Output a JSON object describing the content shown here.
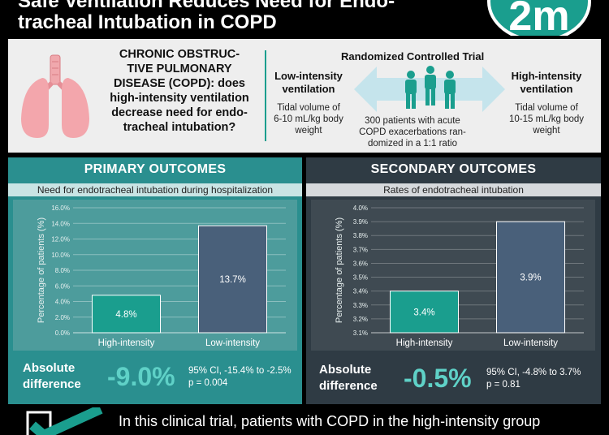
{
  "header": {
    "title_line1": "Safe Ventilation Reduces Need for Endo-",
    "title_line2": "tracheal Intubation in COPD",
    "logo": "2m"
  },
  "intro": {
    "question": "CHRONIC OBSTRUCTIVE PULMONARY DISEASE (COPD): does high-intensity ventilation decrease need for endotracheal intubation?",
    "question_lines": [
      "CHRONIC OBSTRUC-",
      "TIVE PULMONARY",
      "DISEASE (COPD): does",
      "high-intensity ventilation",
      "decrease need for endo-",
      "tracheal intubation?"
    ],
    "rct_title": "Randomized Controlled Trial",
    "low_title_lines": [
      "Low-intensity",
      "ventilation"
    ],
    "low_desc_lines": [
      "Tidal volume of",
      "6-10 mL/kg body",
      "weight"
    ],
    "high_title_lines": [
      "High-intensity",
      "ventilation"
    ],
    "high_desc_lines": [
      "Tidal volume of",
      "10-15 mL/kg body",
      "weight"
    ],
    "center_desc_lines": [
      "300 patients with acute",
      "COPD exacerbations ran-",
      "domized in a 1:1 ratio"
    ]
  },
  "primary": {
    "title": "PRIMARY OUTCOMES",
    "subtitle": "Need for endotracheal intubation during hospitalization",
    "abs_label_lines": [
      "Absolute",
      "difference"
    ],
    "abs_value": "-9.0%",
    "ci": "95% CI, -15.4% to -2.5%",
    "p": "p = 0.004"
  },
  "secondary": {
    "title": "SECONDARY OUTCOMES",
    "subtitle": "Rates of endotracheal intubation",
    "abs_label_lines": [
      "Absolute",
      "difference"
    ],
    "abs_value": "-0.5%",
    "ci": "95% CI, -4.8% to 3.7%",
    "p": "p = 0.81"
  },
  "conclusion": "In this clinical trial, patients with COPD in the high-intensity group",
  "colors": {
    "teal": "#1a9e8e",
    "bar_high": "#1a9e8e",
    "bar_low": "#49607a",
    "accent_value": "#5fd1c7"
  },
  "chart_data": [
    {
      "type": "bar",
      "categories": [
        "High-intensity",
        "Low-intensity"
      ],
      "values": [
        4.8,
        13.7
      ],
      "value_labels": [
        "4.8%",
        "13.7%"
      ],
      "ylabel": "Percentage of patients (%)",
      "ylim": [
        0,
        16
      ],
      "yticks": [
        0,
        2,
        4,
        6,
        8,
        10,
        12,
        14,
        16
      ],
      "ytick_labels": [
        "0.0%",
        "2.0%",
        "4.0%",
        "6.0%",
        "8.0%",
        "10.0%",
        "12.0%",
        "14.0%",
        "16.0%"
      ],
      "grid": true
    },
    {
      "type": "bar",
      "categories": [
        "High-intensity",
        "Low-intensity"
      ],
      "values": [
        3.4,
        3.9
      ],
      "value_labels": [
        "3.4%",
        "3.9%"
      ],
      "ylabel": "Percentage of patients (%)",
      "ylim": [
        3.1,
        4.0
      ],
      "yticks": [
        3.1,
        3.2,
        3.3,
        3.4,
        3.5,
        3.6,
        3.7,
        3.8,
        3.9,
        4.0
      ],
      "ytick_labels": [
        "3.1%",
        "3.2%",
        "3.3%",
        "3.4%",
        "3.5%",
        "3.6%",
        "3.7%",
        "3.8%",
        "3.9%",
        "4.0%"
      ],
      "grid": true
    }
  ]
}
